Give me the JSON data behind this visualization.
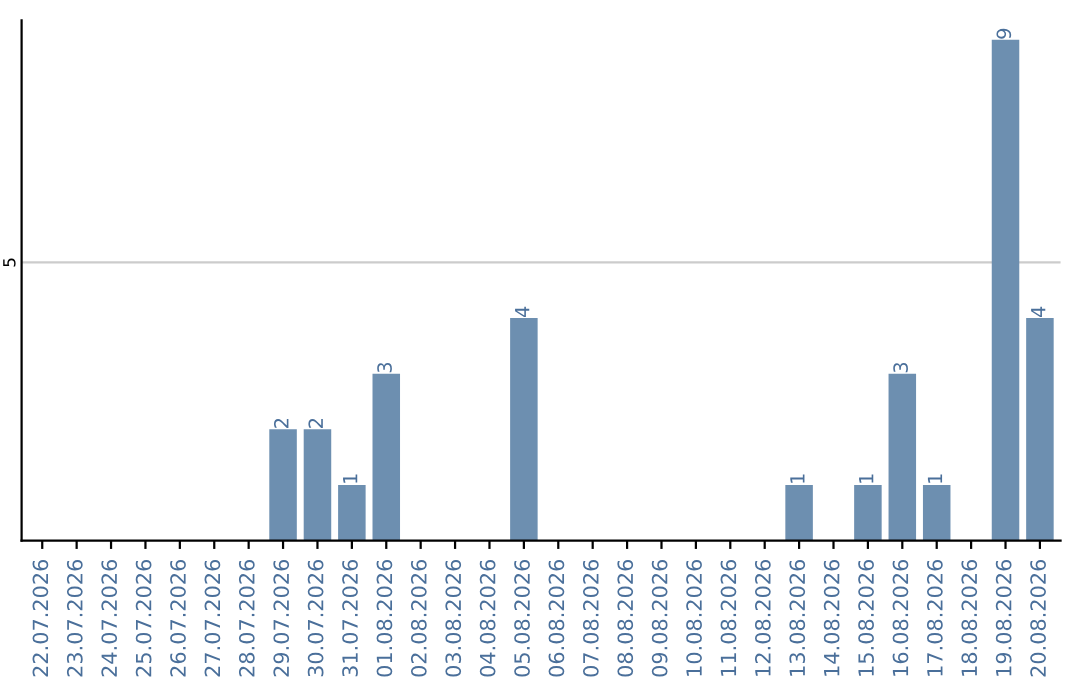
{
  "chart_data": {
    "type": "bar",
    "categories": [
      "22.07.2026",
      "23.07.2026",
      "24.07.2026",
      "25.07.2026",
      "26.07.2026",
      "27.07.2026",
      "28.07.2026",
      "29.07.2026",
      "30.07.2026",
      "31.07.2026",
      "01.08.2026",
      "02.08.2026",
      "03.08.2026",
      "04.08.2026",
      "05.08.2026",
      "06.08.2026",
      "07.08.2026",
      "08.08.2026",
      "09.08.2026",
      "10.08.2026",
      "11.08.2026",
      "12.08.2026",
      "13.08.2026",
      "14.08.2026",
      "15.08.2026",
      "16.08.2026",
      "17.08.2026",
      "18.08.2026",
      "19.08.2026",
      "20.08.2026"
    ],
    "values": [
      0,
      0,
      0,
      0,
      0,
      0,
      0,
      2,
      2,
      1,
      3,
      0,
      0,
      0,
      4,
      0,
      0,
      0,
      0,
      0,
      0,
      0,
      1,
      0,
      1,
      3,
      1,
      0,
      9,
      4
    ],
    "value_labels": [
      null,
      null,
      null,
      null,
      null,
      null,
      null,
      "2",
      "2",
      "1",
      "3",
      null,
      null,
      null,
      "4",
      null,
      null,
      null,
      null,
      null,
      null,
      null,
      "1",
      null,
      "1",
      "3",
      "1",
      null,
      "9",
      "4"
    ],
    "color": "#6d8fb0",
    "ylim": [
      0,
      9.35
    ],
    "yticks": [
      5
    ],
    "grid": "y"
  }
}
